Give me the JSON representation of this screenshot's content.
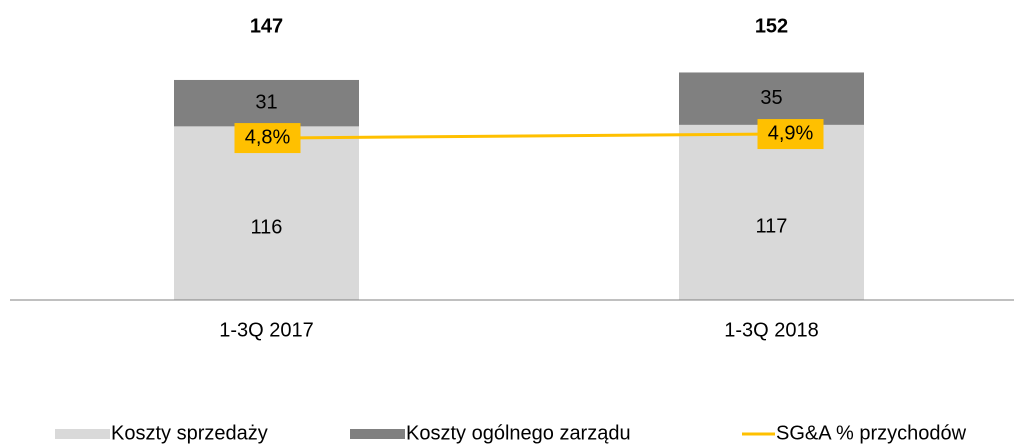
{
  "chart_data": {
    "type": "bar",
    "categories": [
      "1-3Q 2017",
      "1-3Q 2018"
    ],
    "stacked": true,
    "series": [
      {
        "name": "Koszty sprzedaży",
        "color": "#d9d9d9",
        "values": [
          116,
          117
        ]
      },
      {
        "name": "Koszty ogólnego zarządu",
        "color": "#808080",
        "values": [
          31,
          35
        ]
      },
      {
        "name": "SG&A % przychodów",
        "color": "#ffc000",
        "type": "line",
        "axis": "y2",
        "values": [
          4.8,
          4.9
        ],
        "value_labels": [
          "4,8%",
          "4,9%"
        ]
      }
    ],
    "totals": [
      147,
      152
    ],
    "ylim": [
      0,
      160
    ],
    "y2lim": [
      0.75,
      6.74
    ],
    "legend": "bottom"
  }
}
